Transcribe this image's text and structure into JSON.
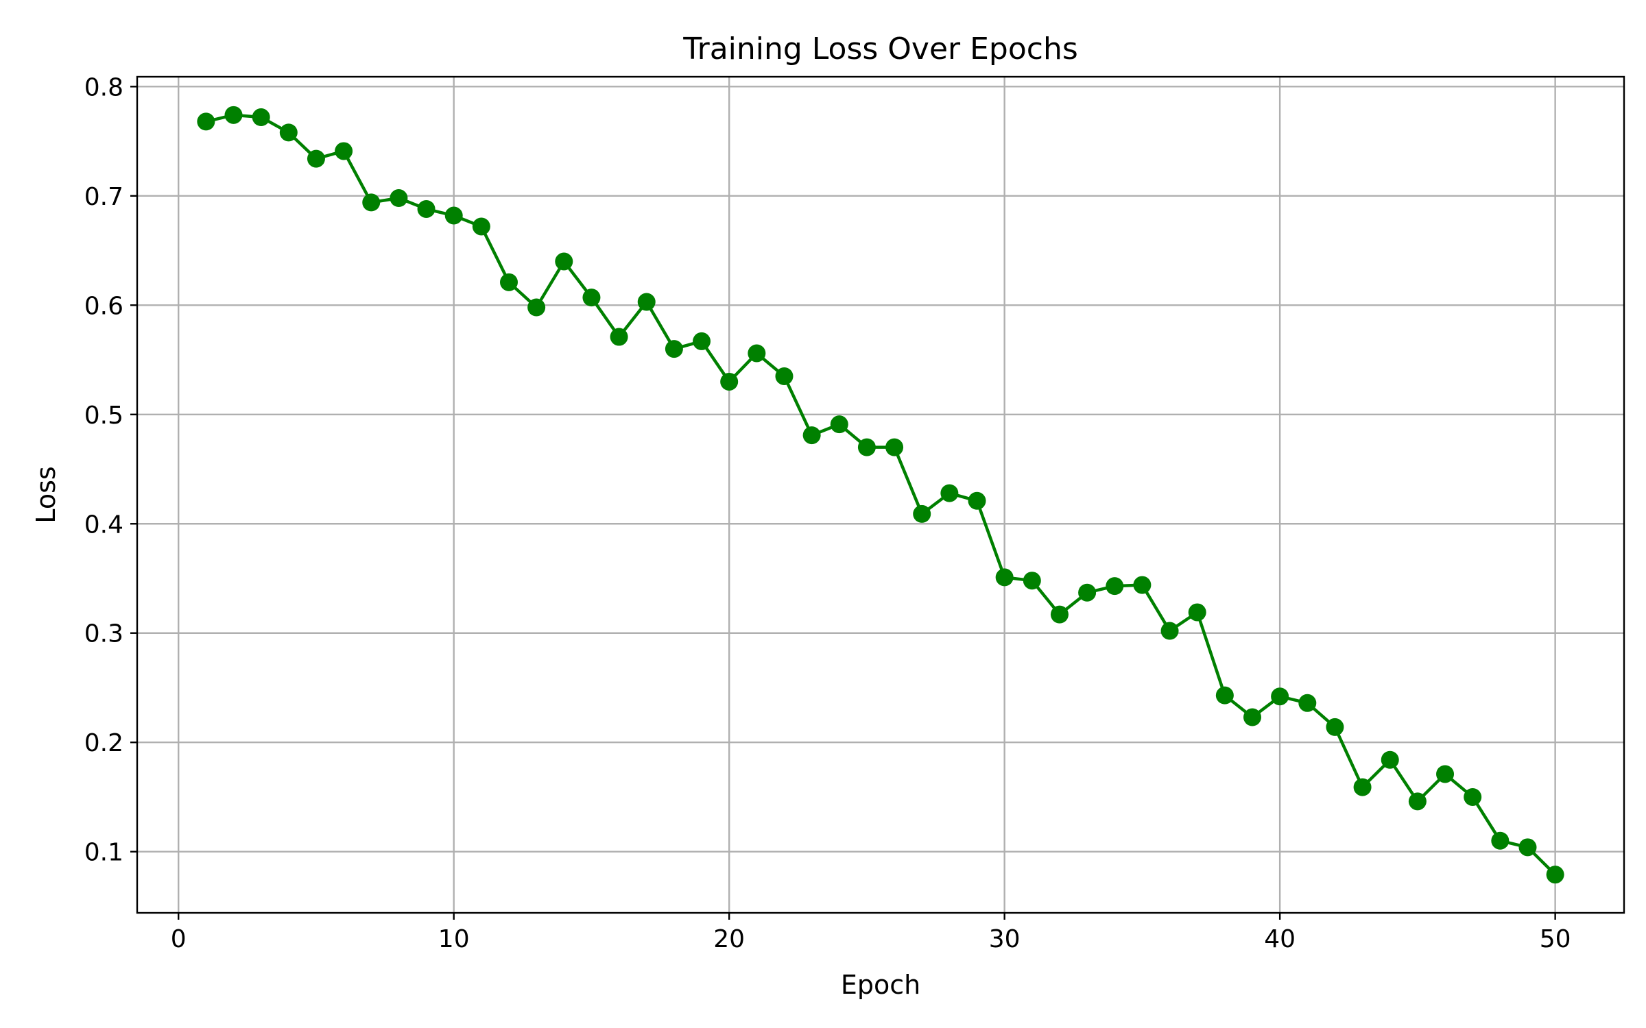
{
  "chart_data": {
    "type": "line",
    "title": "Training Loss Over Epochs",
    "xlabel": "Epoch",
    "ylabel": "Loss",
    "xlim": [
      -1.5,
      52.5
    ],
    "ylim": [
      0.044,
      0.809
    ],
    "xticks": [
      0,
      10,
      20,
      30,
      40,
      50
    ],
    "xtick_labels": [
      "0",
      "10",
      "20",
      "30",
      "40",
      "50"
    ],
    "yticks": [
      0.1,
      0.2,
      0.3,
      0.4,
      0.5,
      0.6,
      0.7,
      0.8
    ],
    "ytick_labels": [
      "0.1",
      "0.2",
      "0.3",
      "0.4",
      "0.5",
      "0.6",
      "0.7",
      "0.8"
    ],
    "grid": true,
    "colors": {
      "series": "#008000",
      "grid": "#b0b0b0",
      "axes": "#000000"
    },
    "marker": "circle",
    "series": [
      {
        "x": [
          1,
          2,
          3,
          4,
          5,
          6,
          7,
          8,
          9,
          10,
          11,
          12,
          13,
          14,
          15,
          16,
          17,
          18,
          19,
          20,
          21,
          22,
          23,
          24,
          25,
          26,
          27,
          28,
          29,
          30,
          31,
          32,
          33,
          34,
          35,
          36,
          37,
          38,
          39,
          40,
          41,
          42,
          43,
          44,
          45,
          46,
          47,
          48,
          49,
          50
        ],
        "values": [
          0.768,
          0.774,
          0.772,
          0.758,
          0.734,
          0.741,
          0.694,
          0.698,
          0.688,
          0.682,
          0.672,
          0.621,
          0.598,
          0.64,
          0.607,
          0.571,
          0.603,
          0.56,
          0.567,
          0.53,
          0.556,
          0.535,
          0.481,
          0.491,
          0.47,
          0.47,
          0.409,
          0.428,
          0.421,
          0.351,
          0.348,
          0.317,
          0.337,
          0.343,
          0.344,
          0.302,
          0.319,
          0.243,
          0.223,
          0.242,
          0.236,
          0.214,
          0.159,
          0.184,
          0.146,
          0.171,
          0.15,
          0.11,
          0.104,
          0.079
        ]
      }
    ]
  }
}
